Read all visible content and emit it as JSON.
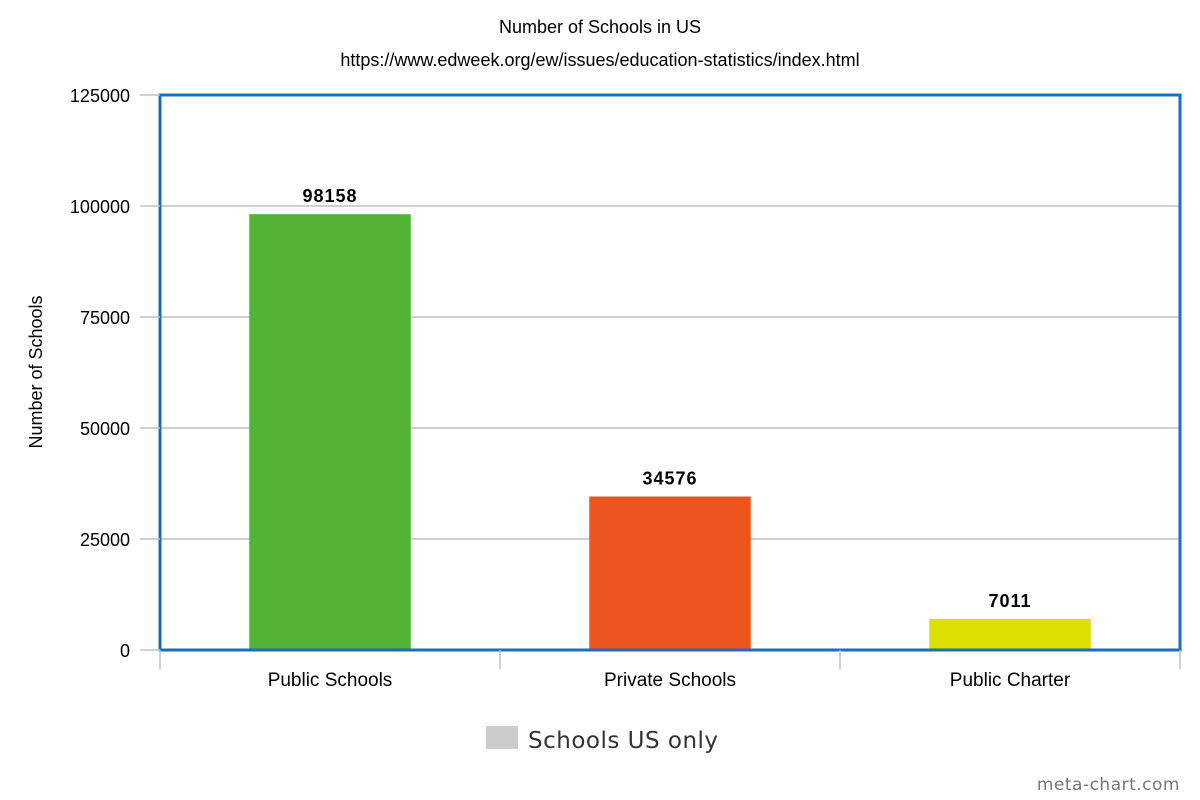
{
  "chart_data": {
    "type": "bar",
    "title": "Number of Schools in US",
    "subtitle": "https://www.edweek.org/ew/issues/education-statistics/index.html",
    "xlabel": "",
    "ylabel": "Number of Schools",
    "categories": [
      "Public Schools",
      "Private Schools",
      "Public Charter"
    ],
    "series": [
      {
        "name": "Schools US only",
        "values": [
          98158,
          34576,
          7011
        ]
      }
    ],
    "data_labels": [
      "98158",
      "34576",
      "7011"
    ],
    "bar_colors": [
      "#52b335",
      "#ec561e",
      "#dcdf00"
    ],
    "legend_color": "#cccccc",
    "ylim": [
      0,
      125000
    ],
    "yticks": [
      0,
      25000,
      50000,
      75000,
      100000,
      125000
    ],
    "ytick_labels": [
      "0",
      "25000",
      "50000",
      "75000",
      "100000",
      "125000"
    ],
    "grid": true,
    "legend_position": "bottom-center",
    "frame_color": "#1a6fb8"
  },
  "credit": "meta-chart.com"
}
